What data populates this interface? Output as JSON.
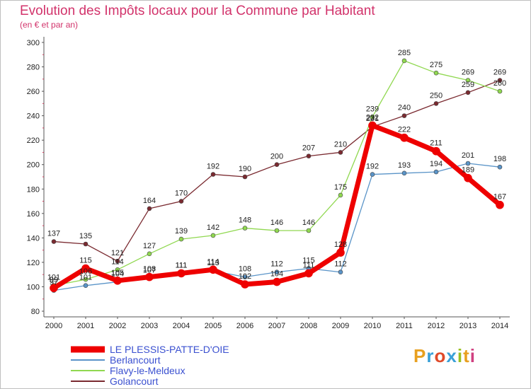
{
  "title": "Evolution des Impôts locaux pour la Commune par Habitant",
  "subtitle": "(en € et par an)",
  "brand": {
    "name": "Proxiti",
    "colors": [
      "#e8a020",
      "#3aa0d8",
      "#e04a2a",
      "#3aa0d8",
      "#9ac020",
      "#e8a020",
      "#d04080"
    ]
  },
  "chart_data": {
    "type": "line",
    "title": "Evolution des Impôts locaux pour la Commune par Habitant",
    "ylabel": "(en € et par an)",
    "ylim": [
      80,
      300
    ],
    "yticks": [
      80,
      100,
      120,
      140,
      160,
      180,
      200,
      220,
      240,
      260,
      280,
      300
    ],
    "x": [
      "2000",
      "2001",
      "2002",
      "2003",
      "2004",
      "2005",
      "2006",
      "2007",
      "2008",
      "2009",
      "2010",
      "2011",
      "2012",
      "2013",
      "2014"
    ],
    "grid": false,
    "legend": "bottom-left",
    "series": [
      {
        "name": "Golancourt",
        "color": "#7a2a30",
        "width": 1.3,
        "values": [
          137,
          135,
          121,
          164,
          170,
          192,
          190,
          200,
          207,
          210,
          231,
          240,
          250,
          259,
          269
        ]
      },
      {
        "name": "Flavy-le-Meldeux",
        "color": "#90d850",
        "width": 1.3,
        "values": [
          101,
          106,
          114,
          127,
          139,
          142,
          148,
          146,
          146,
          175,
          239,
          285,
          275,
          269,
          260
        ]
      },
      {
        "name": "Berlancourt",
        "color": "#5a94c8",
        "width": 1.3,
        "values": [
          97,
          101,
          104,
          107,
          111,
          113,
          108,
          112,
          115,
          112,
          192,
          193,
          194,
          201,
          198
        ]
      },
      {
        "name": "LE PLESSIS-PATTE-D'OIE",
        "color": "#ee0000",
        "width": 7,
        "values": [
          99,
          115,
          105,
          108,
          111,
          114,
          102,
          104,
          111,
          128,
          232,
          222,
          211,
          189,
          167
        ]
      }
    ],
    "legend_order": [
      "LE PLESSIS-PATTE-D'OIE",
      "Berlancourt",
      "Flavy-le-Meldeux",
      "Golancourt"
    ]
  }
}
